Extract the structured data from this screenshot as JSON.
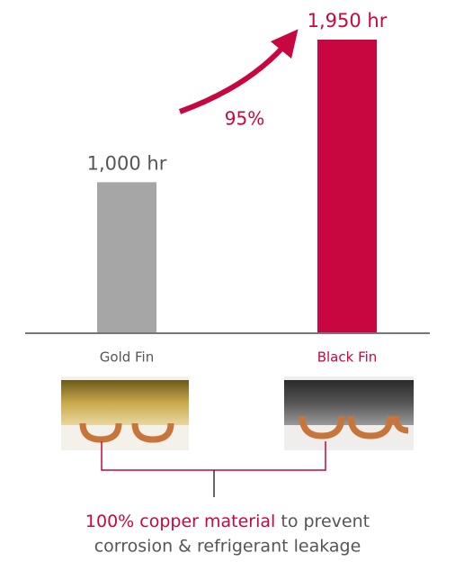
{
  "chart_data": {
    "type": "bar",
    "categories": [
      "Gold Fin",
      "Black Fin"
    ],
    "values": [
      1000,
      1950
    ],
    "value_labels": [
      "1,000 hr",
      "1,950 hr"
    ],
    "colors": [
      "#a6a6a6",
      "#c8063f"
    ],
    "label_colors": [
      "#555555",
      "#c8063f"
    ],
    "annotation": "95%",
    "caption": {
      "highlight": "100% copper material",
      "rest": "to prevent",
      "line2": "corrosion & refrigerant leakage"
    }
  }
}
